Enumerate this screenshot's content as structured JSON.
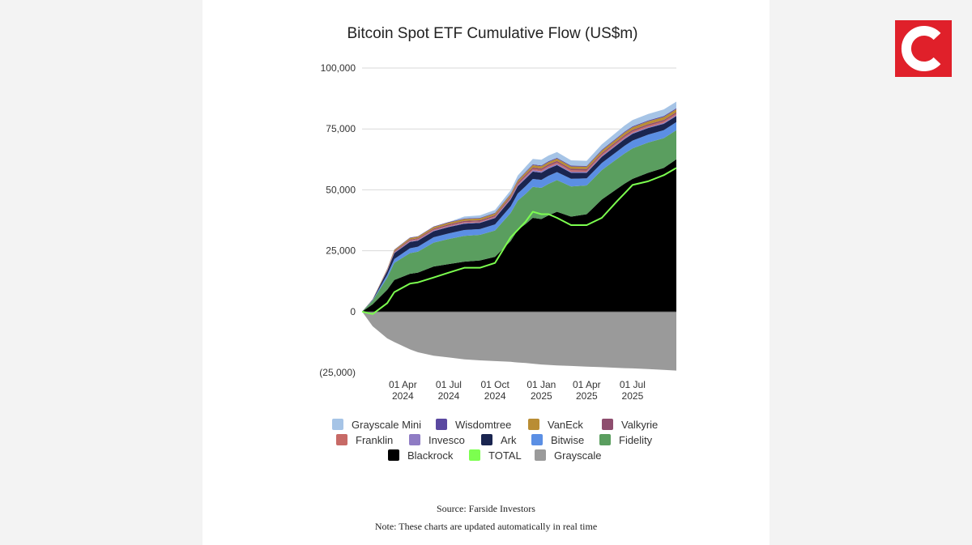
{
  "chart_data": {
    "type": "area",
    "title": "Bitcoin Spot ETF Cumulative Flow (US$m)",
    "y_ticks": [
      "100,000",
      "75,000",
      "50,000",
      "25,000",
      "0",
      "(25,000)"
    ],
    "y_tick_values": [
      100000,
      75000,
      50000,
      25000,
      0,
      -25000
    ],
    "ylim": [
      -25000,
      100000
    ],
    "grid": true,
    "x_start": "2024-01-11",
    "x_end": "2025-09-26",
    "x_ticks": [
      {
        "date": "2024-04-01",
        "line1": "01 Apr",
        "line2": "2024"
      },
      {
        "date": "2024-07-01",
        "line1": "01 Jul",
        "line2": "2024"
      },
      {
        "date": "2024-10-01",
        "line1": "01 Oct",
        "line2": "2024"
      },
      {
        "date": "2025-01-01",
        "line1": "01 Jan",
        "line2": "2025"
      },
      {
        "date": "2025-04-01",
        "line1": "01 Apr",
        "line2": "2025"
      },
      {
        "date": "2025-07-01",
        "line1": "01 Jul",
        "line2": "2025"
      }
    ],
    "x": [
      "2024-01-11",
      "2024-02-01",
      "2024-03-01",
      "2024-03-15",
      "2024-04-15",
      "2024-05-01",
      "2024-06-01",
      "2024-07-01",
      "2024-08-01",
      "2024-09-01",
      "2024-10-01",
      "2024-11-01",
      "2024-11-15",
      "2024-12-01",
      "2024-12-15",
      "2025-01-01",
      "2025-01-15",
      "2025-02-01",
      "2025-03-01",
      "2025-04-01",
      "2025-05-01",
      "2025-06-01",
      "2025-06-15",
      "2025-07-01",
      "2025-08-01",
      "2025-09-01",
      "2025-09-26"
    ],
    "stack_order": [
      "Blackrock",
      "Fidelity",
      "Bitwise",
      "Ark",
      "Invesco",
      "Franklin",
      "Valkyrie",
      "VanEck",
      "Wisdomtree",
      "Grayscale Mini"
    ],
    "series": [
      {
        "name": "Blackrock",
        "color": "#000000",
        "values": [
          0,
          3000,
          9000,
          13000,
          15500,
          16000,
          18500,
          19500,
          20500,
          21000,
          22500,
          29000,
          33500,
          36000,
          38500,
          38000,
          39500,
          41000,
          39000,
          40000,
          46000,
          50500,
          52500,
          54500,
          57000,
          59000,
          62500
        ]
      },
      {
        "name": "Fidelity",
        "color": "#5a9e5f",
        "values": [
          0,
          1500,
          5000,
          7000,
          8500,
          8600,
          9800,
          10300,
          10600,
          10500,
          10800,
          11500,
          12000,
          12400,
          12700,
          12800,
          12900,
          13000,
          12400,
          11800,
          12100,
          12300,
          12400,
          12500,
          12400,
          12200,
          12000
        ]
      },
      {
        "name": "Bitwise",
        "color": "#5b8fe4",
        "values": [
          0,
          200,
          1200,
          1600,
          2000,
          2050,
          2200,
          2300,
          2400,
          2400,
          2500,
          2700,
          2950,
          3150,
          3250,
          3300,
          3350,
          3300,
          3150,
          2900,
          2900,
          3050,
          3150,
          3200,
          3250,
          3300,
          3300
        ]
      },
      {
        "name": "Ark",
        "color": "#1a2550",
        "values": [
          0,
          200,
          1500,
          2400,
          2600,
          2500,
          2500,
          2600,
          2600,
          2500,
          2600,
          2800,
          3000,
          3100,
          3050,
          2950,
          2950,
          2850,
          2450,
          2300,
          2550,
          2700,
          2750,
          2800,
          2700,
          2600,
          2500
        ]
      },
      {
        "name": "Invesco",
        "color": "#8f7cc4",
        "values": [
          0,
          50,
          200,
          250,
          300,
          300,
          300,
          300,
          300,
          250,
          300,
          350,
          450,
          550,
          550,
          550,
          550,
          500,
          450,
          400,
          400,
          400,
          400,
          400,
          400,
          400,
          400
        ]
      },
      {
        "name": "Franklin",
        "color": "#c76a66",
        "values": [
          0,
          50,
          200,
          250,
          300,
          300,
          320,
          340,
          350,
          350,
          370,
          400,
          430,
          470,
          500,
          520,
          540,
          560,
          560,
          550,
          560,
          580,
          590,
          600,
          600,
          600,
          600
        ]
      },
      {
        "name": "Valkyrie",
        "color": "#8e4d6e",
        "values": [
          0,
          30,
          150,
          300,
          400,
          400,
          450,
          500,
          520,
          520,
          520,
          550,
          580,
          600,
          610,
          620,
          630,
          630,
          620,
          600,
          600,
          600,
          600,
          600,
          600,
          600,
          600
        ]
      },
      {
        "name": "VanEck",
        "color": "#b98d34",
        "values": [
          0,
          50,
          300,
          500,
          600,
          600,
          650,
          700,
          720,
          720,
          740,
          800,
          850,
          900,
          950,
          950,
          950,
          950,
          950,
          950,
          1000,
          1050,
          1100,
          1100,
          1150,
          1200,
          1200
        ]
      },
      {
        "name": "Wisdomtree",
        "color": "#5a48a0",
        "values": [
          0,
          20,
          100,
          150,
          200,
          200,
          220,
          240,
          250,
          250,
          260,
          280,
          300,
          320,
          330,
          340,
          350,
          350,
          340,
          330,
          340,
          350,
          360,
          370,
          380,
          390,
          400
        ]
      },
      {
        "name": "Grayscale Mini",
        "color": "#a6c4e6",
        "values": [
          0,
          0,
          0,
          0,
          0,
          0,
          0,
          0,
          800,
          1000,
          1150,
          1400,
          1750,
          2050,
          2250,
          2300,
          2350,
          2350,
          2200,
          2050,
          2200,
          2400,
          2500,
          2550,
          2650,
          2700,
          2700
        ]
      },
      {
        "name": "Grayscale",
        "color": "#9a9a9a",
        "values": [
          0,
          -6000,
          -11000,
          -12500,
          -15500,
          -16700,
          -18100,
          -18800,
          -19600,
          -20000,
          -20300,
          -20600,
          -20900,
          -21100,
          -21400,
          -21700,
          -21900,
          -22100,
          -22300,
          -22600,
          -22800,
          -23100,
          -23200,
          -23300,
          -23600,
          -23900,
          -24200
        ]
      },
      {
        "name": "TOTAL",
        "color": "#7cff4f",
        "values": [
          0,
          -1000,
          3500,
          8000,
          11500,
          12000,
          14000,
          16000,
          18000,
          18000,
          20000,
          30500,
          33500,
          37000,
          41000,
          40000,
          40000,
          38500,
          35500,
          35500,
          38500,
          45500,
          48500,
          52000,
          53500,
          56000,
          59000
        ]
      }
    ],
    "legend_position": "bottom",
    "legend": [
      {
        "name": "Grayscale Mini",
        "color": "#a6c4e6"
      },
      {
        "name": "Wisdomtree",
        "color": "#5a48a0"
      },
      {
        "name": "VanEck",
        "color": "#b98d34"
      },
      {
        "name": "Valkyrie",
        "color": "#8e4d6e"
      },
      {
        "name": "Franklin",
        "color": "#c76a66"
      },
      {
        "name": "Invesco",
        "color": "#8f7cc4"
      },
      {
        "name": "Ark",
        "color": "#1a2550"
      },
      {
        "name": "Bitwise",
        "color": "#5b8fe4"
      },
      {
        "name": "Fidelity",
        "color": "#5a9e5f"
      },
      {
        "name": "Blackrock",
        "color": "#000000"
      },
      {
        "name": "TOTAL",
        "color": "#7cff4f"
      },
      {
        "name": "Grayscale",
        "color": "#9a9a9a"
      }
    ]
  },
  "footer": {
    "source": "Source: Farside Investors",
    "note": "Note: These charts are updated automatically in real time"
  },
  "brand": {
    "icon": "c-logo-icon",
    "letter": "C",
    "color": "#e0202a"
  }
}
